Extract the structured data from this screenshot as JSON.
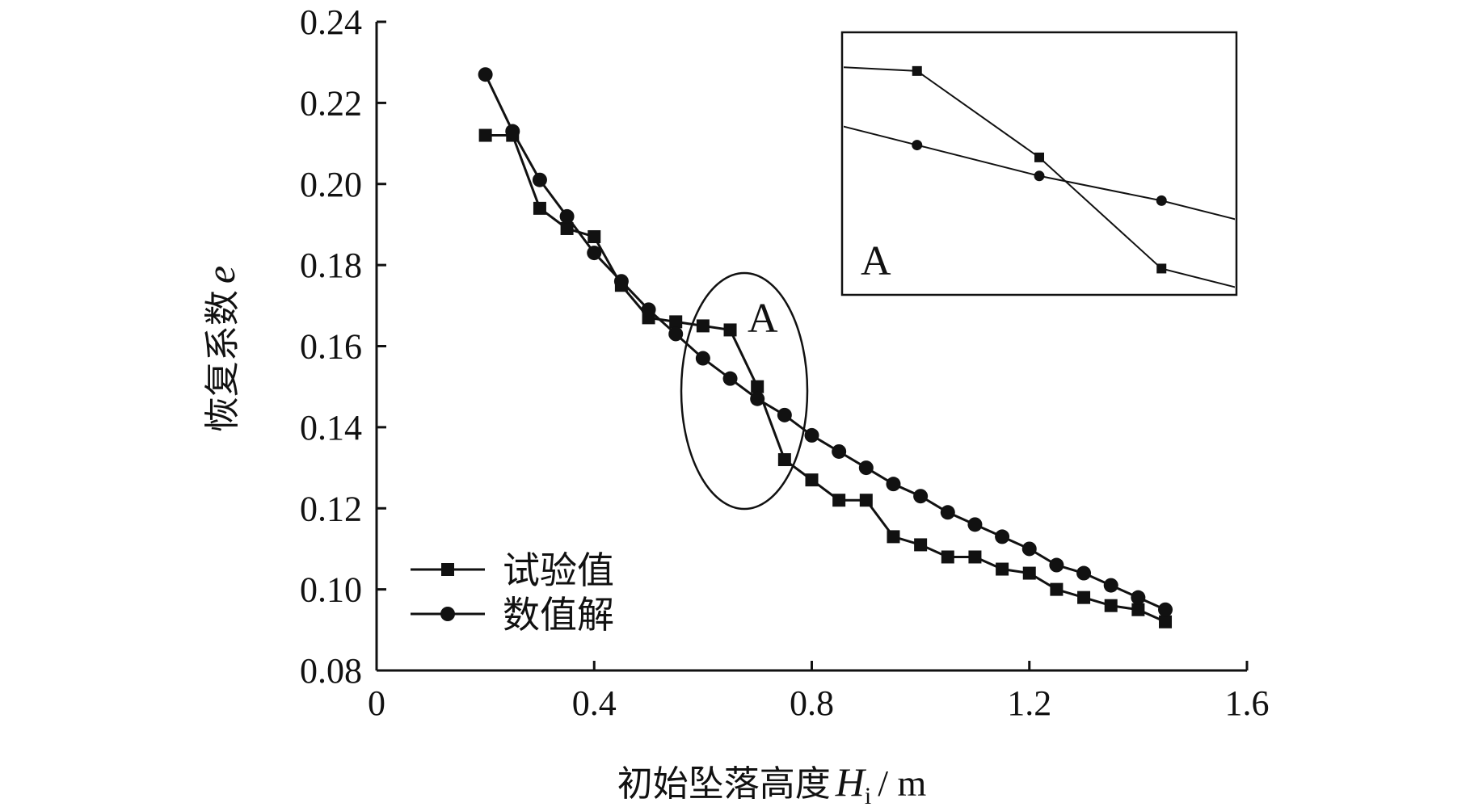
{
  "chart_data": {
    "type": "line",
    "title": "",
    "xlabel": "初始坠落高度",
    "xlabel_var": "H",
    "xlabel_sub": "i",
    "xlabel_unit": "/ m",
    "ylabel": "恢复系数",
    "ylabel_var": "e",
    "xlim": [
      0,
      1.6
    ],
    "ylim": [
      0.08,
      0.24
    ],
    "x_ticks": [
      "0",
      "0.4",
      "0.8",
      "1.2",
      "1.6"
    ],
    "y_ticks": [
      "0.08",
      "0.10",
      "0.12",
      "0.14",
      "0.16",
      "0.18",
      "0.20",
      "0.22",
      "0.24"
    ],
    "grid": false,
    "legend_position": "bottom-left",
    "series": [
      {
        "name": "试验值",
        "marker": "square",
        "x": [
          0.2,
          0.25,
          0.3,
          0.35,
          0.4,
          0.45,
          0.5,
          0.55,
          0.6,
          0.65,
          0.7,
          0.75,
          0.8,
          0.85,
          0.9,
          0.95,
          1.0,
          1.05,
          1.1,
          1.15,
          1.2,
          1.25,
          1.3,
          1.35,
          1.4,
          1.45
        ],
        "y": [
          0.212,
          0.212,
          0.194,
          0.189,
          0.187,
          0.175,
          0.167,
          0.166,
          0.165,
          0.164,
          0.15,
          0.132,
          0.127,
          0.122,
          0.122,
          0.113,
          0.111,
          0.108,
          0.108,
          0.105,
          0.104,
          0.1,
          0.098,
          0.096,
          0.095,
          0.092
        ]
      },
      {
        "name": "数值解",
        "marker": "circle",
        "x": [
          0.2,
          0.25,
          0.3,
          0.35,
          0.4,
          0.45,
          0.5,
          0.55,
          0.6,
          0.65,
          0.7,
          0.75,
          0.8,
          0.85,
          0.9,
          0.95,
          1.0,
          1.05,
          1.1,
          1.15,
          1.2,
          1.25,
          1.3,
          1.35,
          1.4,
          1.45
        ],
        "y": [
          0.227,
          0.213,
          0.201,
          0.192,
          0.183,
          0.176,
          0.169,
          0.163,
          0.157,
          0.152,
          0.147,
          0.143,
          0.138,
          0.134,
          0.13,
          0.126,
          0.123,
          0.119,
          0.116,
          0.113,
          0.11,
          0.106,
          0.104,
          0.101,
          0.098,
          0.095
        ]
      }
    ],
    "annotation": {
      "label": "A",
      "inset_label": "A",
      "region_x": [
        0.62,
        0.78
      ]
    }
  }
}
